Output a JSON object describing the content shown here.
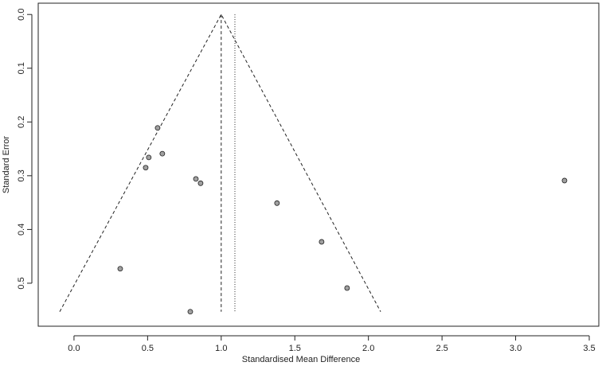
{
  "chart_data": {
    "type": "scatter",
    "xlabel": "Standardised Mean Difference",
    "ylabel": "Standard Error",
    "x": [
      0.568,
      0.508,
      0.6,
      0.487,
      0.828,
      0.86,
      1.379,
      3.332,
      1.682,
      0.314,
      1.855,
      0.79
    ],
    "y": [
      0.211,
      0.266,
      0.259,
      0.285,
      0.306,
      0.314,
      0.351,
      0.309,
      0.423,
      0.473,
      0.509,
      0.553
    ],
    "point_color": "#a0a0a0",
    "xlim": [
      -0.243,
      3.565
    ],
    "ylim": [
      0.58,
      -0.021
    ],
    "xticks": [
      {
        "value": 0,
        "label": "0.0"
      },
      0.5,
      {
        "value": 1,
        "label": "1.0"
      },
      1.5,
      {
        "value": 2,
        "label": "2.0"
      },
      2.5,
      {
        "value": 3,
        "label": "3.0"
      },
      3.5
    ],
    "yticks": [
      {
        "value": 0,
        "label": "0.0"
      },
      0.1,
      0.2,
      0.3,
      0.4,
      0.5
    ],
    "funnel": {
      "x": [
        -0.097,
        1.0,
        2.083
      ],
      "y": [
        0.553,
        0,
        0.553
      ]
    },
    "summary_lines": [
      {
        "x": 1.0,
        "style": "dashed",
        "y": [
          0,
          0.553
        ]
      },
      {
        "x": 1.093,
        "style": "dotted",
        "y": [
          0,
          0.553
        ]
      }
    ]
  }
}
